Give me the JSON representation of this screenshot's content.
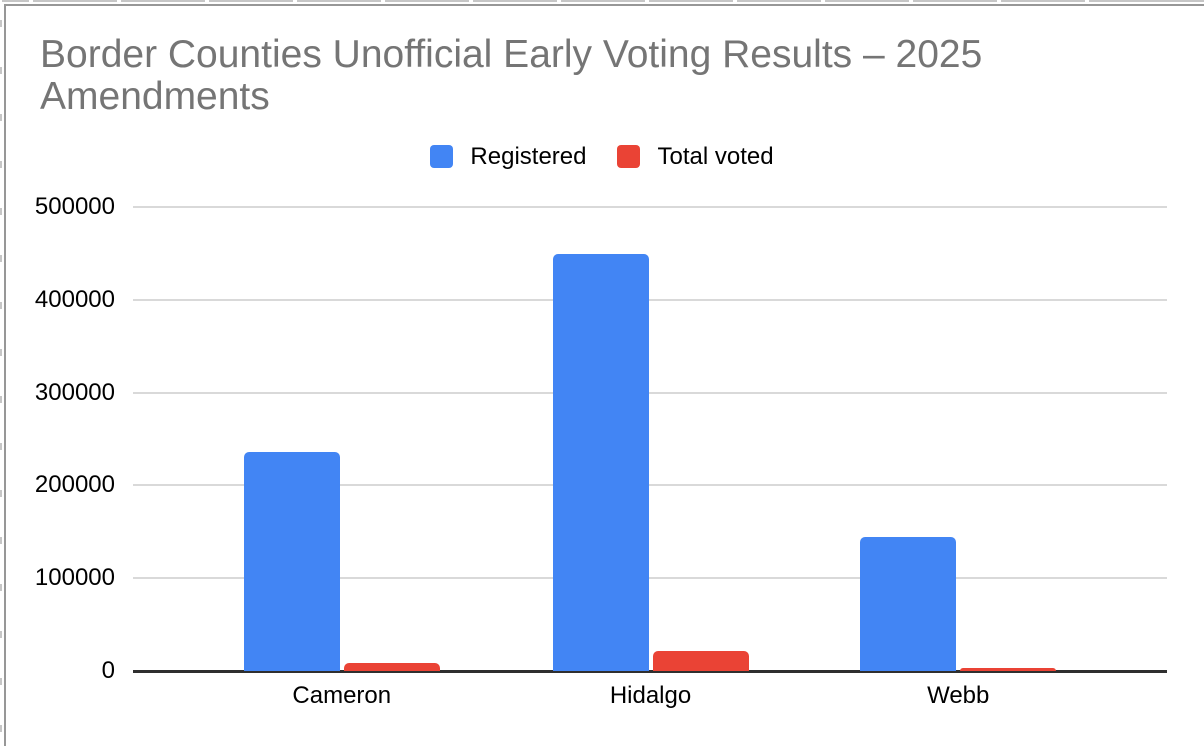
{
  "chart_data": {
    "type": "bar",
    "title": "Border Counties Unofficial Early Voting Results – 2025 Amendments",
    "title_lines": [
      "Border Counties Unofficial Early Voting Results – 2025",
      "Amendments"
    ],
    "categories": [
      "Cameron",
      "Hidalgo",
      "Webb"
    ],
    "series": [
      {
        "name": "Registered",
        "color": "#4285F4",
        "values": [
          236000,
          449000,
          144000
        ]
      },
      {
        "name": "Total voted",
        "color": "#EA4335",
        "values": [
          9000,
          21500,
          3000
        ]
      }
    ],
    "ylim": [
      0,
      500000
    ],
    "ytick_labels": [
      "0",
      "100000",
      "200000",
      "300000",
      "400000",
      "500000"
    ],
    "ytick_values": [
      0,
      100000,
      200000,
      300000,
      400000,
      500000
    ],
    "grid": true,
    "legend_position": "top",
    "colors": {
      "title_text": "#757575",
      "axis_labels": "#000000",
      "gridline": "#d9d9d9",
      "axis_line": "#2f2f2f",
      "chart_border": "#979797"
    }
  }
}
